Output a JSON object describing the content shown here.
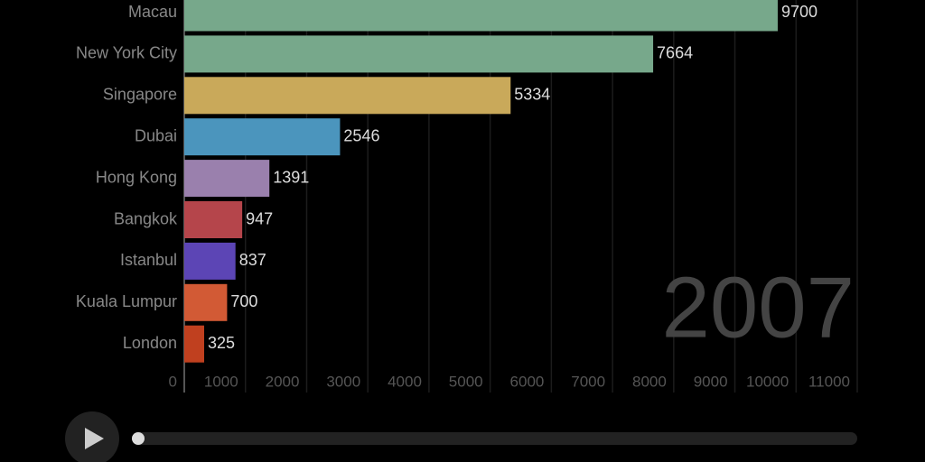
{
  "chart_data": {
    "type": "bar",
    "orientation": "horizontal",
    "categories": [
      "Macau",
      "New York City",
      "Singapore",
      "Dubai",
      "Hong Kong",
      "Bangkok",
      "Istanbul",
      "Kuala Lumpur",
      "London"
    ],
    "values": [
      9700,
      7664,
      5334,
      2546,
      1391,
      947,
      837,
      700,
      325
    ],
    "colors": [
      "#77a88b",
      "#77a88b",
      "#c9a95a",
      "#4b95bd",
      "#9a80ad",
      "#b5454b",
      "#5c45b5",
      "#d25a35",
      "#c0401f"
    ],
    "xlim": [
      0,
      11000
    ],
    "xticks": [
      0,
      1000,
      2000,
      3000,
      4000,
      5000,
      6000,
      7000,
      8000,
      9000,
      10000,
      11000
    ],
    "grid": true,
    "year_label": "2007"
  }
}
